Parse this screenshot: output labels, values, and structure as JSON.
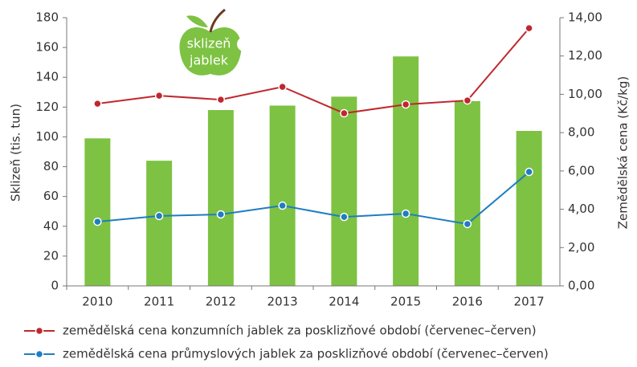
{
  "chart_data": {
    "type": "bar",
    "categories": [
      "2010",
      "2011",
      "2012",
      "2013",
      "2014",
      "2015",
      "2016",
      "2017"
    ],
    "values": [
      99,
      84,
      118,
      121,
      127,
      154,
      124,
      104
    ],
    "color": "#7dc242",
    "ylabel": "Sklizeň (tis. tun)",
    "ylim": [
      0,
      180
    ],
    "yticks": [
      0,
      20,
      40,
      60,
      80,
      100,
      120,
      140,
      160,
      180
    ],
    "y2label": "Zemědělská cena (Kč/kg)",
    "y2lim": [
      0,
      14
    ],
    "y2ticks": [
      {
        "value": 0,
        "label": "0,00"
      },
      {
        "value": 2,
        "label": "2,00"
      },
      {
        "value": 4,
        "label": "4,00"
      },
      {
        "value": 6,
        "label": "6,00"
      },
      {
        "value": 8,
        "label": "8,00"
      },
      {
        "value": 10,
        "label": "10,00"
      },
      {
        "value": 12,
        "label": "12,00"
      },
      {
        "value": 14,
        "label": "14,00"
      }
    ],
    "series": [
      {
        "name": "zemědělská cena konzumních jablek za posklizňové období (červenec–červen)",
        "type": "line",
        "axis": "y2",
        "color": "#c0272d",
        "values": [
          9.51,
          9.93,
          9.72,
          10.39,
          9.01,
          9.47,
          9.68,
          13.45
        ]
      },
      {
        "name": "zemědělská cena průmyslových jablek za posklizňové období (červenec–červen)",
        "type": "line",
        "axis": "y2",
        "color": "#1f7dc1",
        "values": [
          3.35,
          3.65,
          3.73,
          4.19,
          3.6,
          3.77,
          3.23,
          5.95
        ]
      }
    ],
    "annotation": [
      "sklizeň",
      "jablek"
    ]
  }
}
